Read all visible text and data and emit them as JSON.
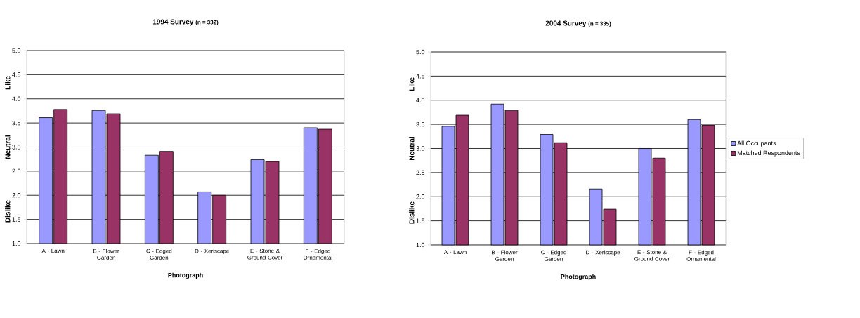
{
  "chart_data": [
    {
      "type": "bar",
      "title": "1994 Survey",
      "subtitle": "(n = 332)",
      "xlabel": "Photograph",
      "categories": [
        "A - Lawn",
        "B - Flower Garden",
        "C - Edged Garden",
        "D - Xeriscape",
        "E - Stone & Ground Cover",
        "F - Edged Ornamental"
      ],
      "series": [
        {
          "color": "#9999ff",
          "values": [
            3.61,
            3.76,
            2.83,
            2.07,
            2.74,
            3.4
          ]
        },
        {
          "color": "#993366",
          "values": [
            3.78,
            3.69,
            2.91,
            2.0,
            2.7,
            3.37
          ]
        }
      ],
      "ylim": [
        1.0,
        5.0
      ],
      "yticks": [
        {
          "value": 1.0,
          "label": "1.0"
        },
        {
          "value": 1.5,
          "label": "1.5"
        },
        {
          "value": 2.0,
          "label": "2.0"
        },
        {
          "value": 2.5,
          "label": "2.5"
        },
        {
          "value": 3.0,
          "label": "3.0"
        },
        {
          "value": 3.5,
          "label": "3.5"
        },
        {
          "value": 4.0,
          "label": "4.0"
        },
        {
          "value": 4.5,
          "label": "4.5"
        },
        {
          "value": 5.0,
          "label": "5.0"
        }
      ],
      "grid": "y",
      "annotations": [
        "Dislike",
        "Neutral",
        "Like"
      ]
    },
    {
      "type": "bar",
      "title": "2004 Survey",
      "subtitle": "(n = 335)",
      "xlabel": "Photograph",
      "categories": [
        "A - Lawn",
        "B - Flower Garden",
        "C - Edged Garden",
        "D - Xeriscape",
        "E - Stone & Ground Cover",
        "F - Edged Ornamental"
      ],
      "series": [
        {
          "name": "All Occupants",
          "color": "#9999ff",
          "values": [
            3.46,
            3.92,
            3.29,
            2.16,
            3.0,
            3.6
          ]
        },
        {
          "name": "Matched Respondents",
          "color": "#993366",
          "values": [
            3.69,
            3.79,
            3.12,
            1.74,
            2.8,
            3.48
          ]
        }
      ],
      "ylim": [
        1.0,
        5.0
      ],
      "yticks": [
        {
          "value": 1.0,
          "label": "1.0"
        },
        {
          "value": 1.5,
          "label": "1.5"
        },
        {
          "value": 2.0,
          "label": "2.0"
        },
        {
          "value": 2.5,
          "label": "2.5"
        },
        {
          "value": 3.0,
          "label": "3.0"
        },
        {
          "value": 3.5,
          "label": "3.5"
        },
        {
          "value": 4.0,
          "label": "4.0"
        },
        {
          "value": 4.5,
          "label": "4.5"
        },
        {
          "value": 5.0,
          "label": "5.0"
        }
      ],
      "grid": "y",
      "legend": "right",
      "annotations": [
        "Dislike",
        "Neutral",
        "Like"
      ]
    }
  ]
}
